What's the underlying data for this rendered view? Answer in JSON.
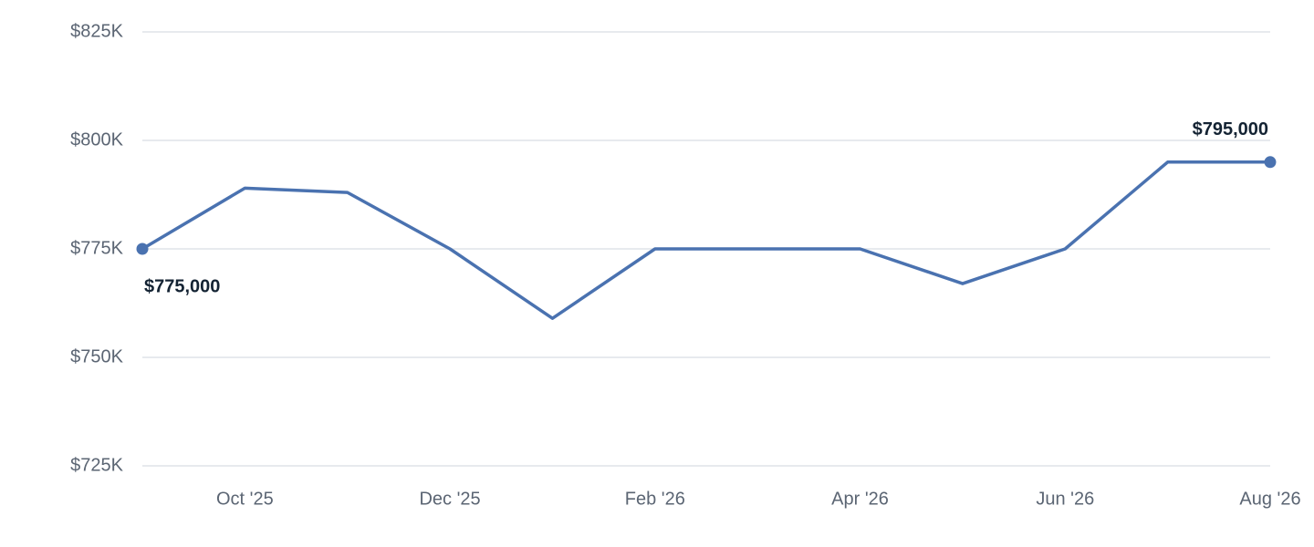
{
  "chart_data": {
    "type": "line",
    "categories": [
      null,
      "Oct '25",
      null,
      "Dec '25",
      null,
      "Feb '26",
      null,
      "Apr '26",
      null,
      "Jun '26",
      null,
      "Aug '26"
    ],
    "series": [
      {
        "color": "#4a72b0",
        "values": [
          775000,
          789000,
          788000,
          775000,
          759000,
          775000,
          775000,
          775000,
          767000,
          775000,
          795000,
          795000
        ],
        "value_labels": [
          "$775,000",
          null,
          null,
          null,
          null,
          null,
          null,
          null,
          null,
          null,
          null,
          "$795,000"
        ]
      }
    ],
    "ylim": [
      725000,
      825000
    ],
    "yticks": [
      {
        "value": 725000,
        "label": "$725K"
      },
      {
        "value": 750000,
        "label": "$750K"
      },
      {
        "value": 775000,
        "label": "$775K"
      },
      {
        "value": 800000,
        "label": "$800K"
      },
      {
        "value": 825000,
        "label": "$825K"
      }
    ],
    "grid": true
  }
}
